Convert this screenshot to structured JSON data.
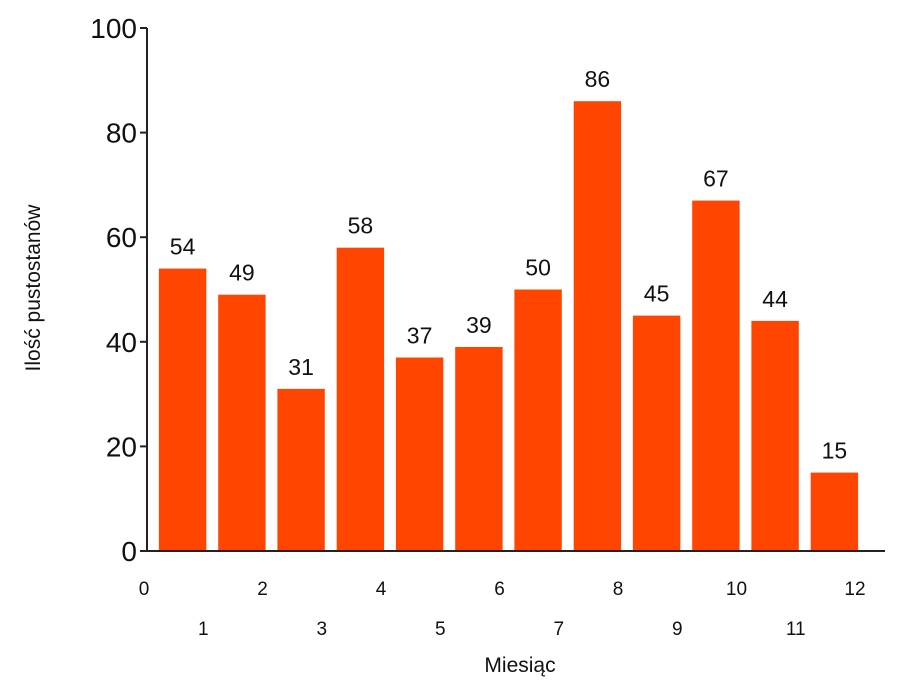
{
  "chart_data": {
    "type": "bar",
    "title": "",
    "xlabel": "Miesiąc",
    "ylabel": "Ilość pustostanów",
    "categories": [
      "1",
      "2",
      "3",
      "4",
      "5",
      "6",
      "7",
      "8",
      "9",
      "10",
      "11",
      "12"
    ],
    "values": [
      54,
      49,
      31,
      58,
      37,
      39,
      50,
      86,
      45,
      67,
      44,
      15
    ],
    "ylim": [
      0,
      100
    ],
    "yticks": [
      "0",
      "20",
      "40",
      "60",
      "80",
      "100"
    ],
    "xlim": [
      0,
      12.5
    ],
    "xticks_upper": [
      "0",
      "2",
      "4",
      "6",
      "8",
      "10",
      "12"
    ],
    "xticks_lower": [
      "1",
      "3",
      "5",
      "7",
      "9",
      "11"
    ],
    "bar_color": "#ff4500",
    "grid": false,
    "legend": "none"
  }
}
